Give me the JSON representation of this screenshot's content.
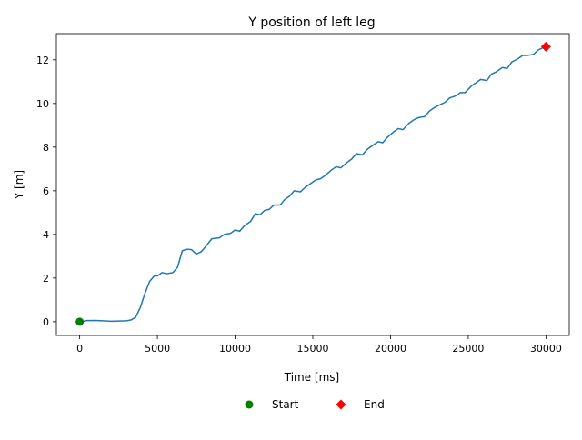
{
  "chart_data": {
    "type": "line",
    "title": "Y position of left leg",
    "xlabel": "Time [ms]",
    "ylabel": "Y [m]",
    "xlim": [
      -1500,
      31500
    ],
    "ylim": [
      -0.63,
      13.2
    ],
    "xticks": [
      0,
      5000,
      10000,
      15000,
      20000,
      25000,
      30000
    ],
    "xtick_labels": [
      "0",
      "5000",
      "10000",
      "15000",
      "20000",
      "25000",
      "30000"
    ],
    "yticks": [
      0,
      2,
      4,
      6,
      8,
      10,
      12
    ],
    "ytick_labels": [
      "0",
      "2",
      "4",
      "6",
      "8",
      "10",
      "12"
    ],
    "grid": false,
    "legend_position": "bottom-center",
    "colors": {
      "line": "#1f77b4",
      "start": "#008000",
      "end": "#ff0000"
    },
    "series": [
      {
        "x": [
          0,
          500,
          1000,
          1500,
          2000,
          2500,
          3000,
          3300,
          3600,
          3900,
          4200,
          4500,
          4800,
          5000,
          5300,
          5600,
          6000,
          6300,
          6600,
          6900,
          7200,
          7500,
          7800,
          8000,
          8500,
          9000,
          9300,
          9700,
          10000,
          10300,
          10600,
          11000,
          11300,
          11600,
          11900,
          12200,
          12500,
          12900,
          13200,
          13500,
          13800,
          14200,
          14500,
          14800,
          15200,
          15500,
          15800,
          16200,
          16500,
          16800,
          17200,
          17500,
          17800,
          18200,
          18500,
          18800,
          19200,
          19500,
          19800,
          20200,
          20500,
          20800,
          21200,
          21500,
          21800,
          22200,
          22500,
          22800,
          23200,
          23500,
          23800,
          24200,
          24500,
          24800,
          25200,
          25500,
          25800,
          26200,
          26500,
          26800,
          27200,
          27500,
          27800,
          28200,
          28500,
          28800,
          29200,
          29500,
          29800,
          30000
        ],
        "y": [
          0.0,
          0.05,
          0.06,
          0.04,
          0.02,
          0.03,
          0.04,
          0.08,
          0.2,
          0.65,
          1.3,
          1.85,
          2.1,
          2.1,
          2.25,
          2.2,
          2.25,
          2.5,
          3.25,
          3.32,
          3.3,
          3.1,
          3.2,
          3.35,
          3.8,
          3.85,
          4.0,
          4.05,
          4.2,
          4.15,
          4.4,
          4.6,
          4.95,
          4.9,
          5.1,
          5.15,
          5.35,
          5.35,
          5.6,
          5.75,
          6.0,
          5.95,
          6.15,
          6.3,
          6.5,
          6.55,
          6.7,
          6.95,
          7.1,
          7.05,
          7.3,
          7.45,
          7.7,
          7.65,
          7.9,
          8.05,
          8.25,
          8.2,
          8.45,
          8.7,
          8.85,
          8.8,
          9.1,
          9.25,
          9.35,
          9.4,
          9.65,
          9.8,
          9.95,
          10.05,
          10.25,
          10.35,
          10.5,
          10.5,
          10.8,
          10.95,
          11.1,
          11.05,
          11.35,
          11.45,
          11.65,
          11.6,
          11.9,
          12.05,
          12.2,
          12.2,
          12.25,
          12.45,
          12.55,
          12.6
        ]
      }
    ],
    "markers": [
      {
        "label": "Start",
        "x": 0,
        "y": 0.0,
        "shape": "circle",
        "color": "#008000"
      },
      {
        "label": "End",
        "x": 30000,
        "y": 12.6,
        "shape": "diamond",
        "color": "#ff0000"
      }
    ]
  }
}
